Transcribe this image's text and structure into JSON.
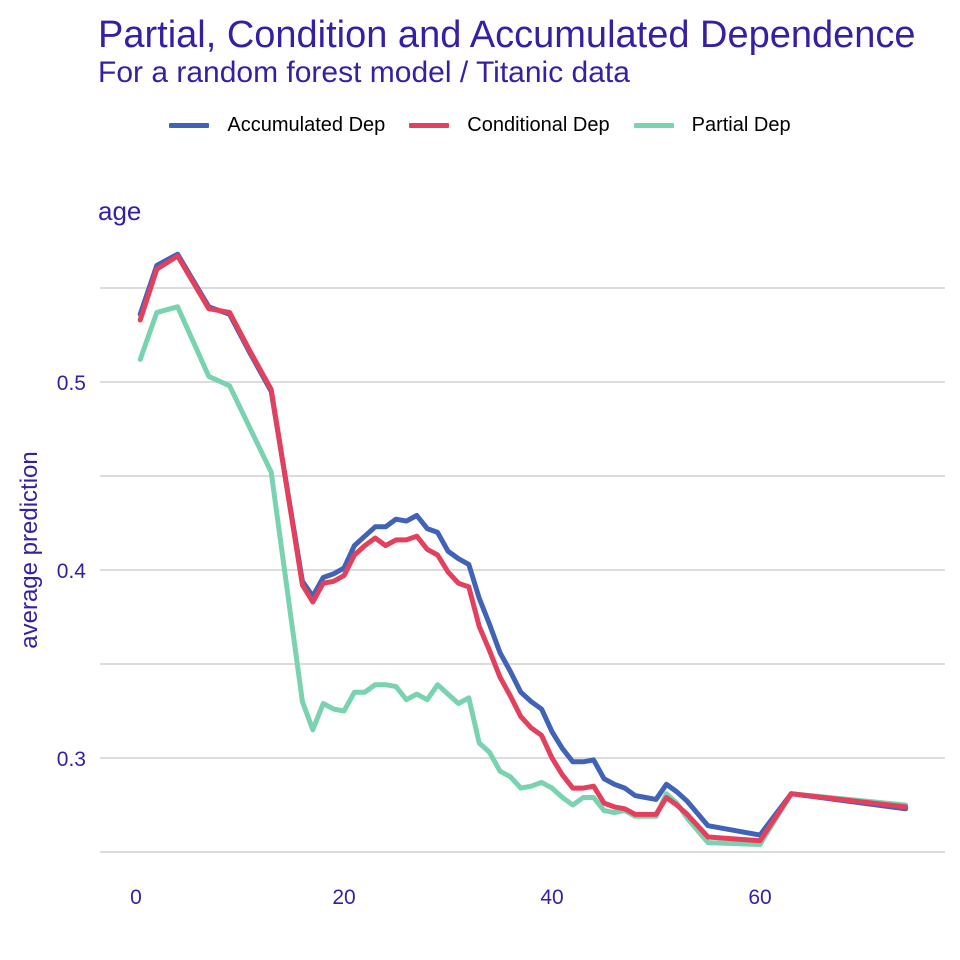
{
  "chart_data": {
    "type": "line",
    "title": "Partial, Condition and Accumulated Dependence",
    "subtitle": "For a random forest model / Titanic data",
    "panel": "age",
    "ylabel": "average prediction",
    "xlim": [
      0,
      74
    ],
    "ylim": [
      0.25,
      0.56
    ],
    "xticks": [
      0,
      20,
      40,
      60
    ],
    "yticks": [
      0.3,
      0.4,
      0.5
    ],
    "ygrid": [
      0.25,
      0.3,
      0.35,
      0.4,
      0.45,
      0.5,
      0.55
    ],
    "x": [
      0.4,
      2,
      4,
      7,
      9,
      11,
      13,
      16,
      17,
      18,
      19,
      20,
      21,
      22,
      23,
      24,
      25,
      26,
      27,
      28,
      29,
      30,
      31,
      32,
      33,
      34,
      35,
      36,
      37,
      38,
      39,
      40,
      41,
      42,
      43,
      44,
      45,
      46,
      47,
      48,
      49,
      50,
      51,
      52,
      53,
      55,
      60,
      63,
      74
    ],
    "series": [
      {
        "name": "Accumulated Dep",
        "color": "#4063b8",
        "values": [
          0.536,
          0.562,
          0.568,
          0.54,
          0.536,
          0.515,
          0.495,
          0.394,
          0.386,
          0.396,
          0.398,
          0.401,
          0.413,
          0.418,
          0.423,
          0.423,
          0.427,
          0.426,
          0.429,
          0.422,
          0.42,
          0.41,
          0.406,
          0.403,
          0.385,
          0.371,
          0.356,
          0.346,
          0.335,
          0.33,
          0.326,
          0.314,
          0.305,
          0.298,
          0.298,
          0.299,
          0.289,
          0.286,
          0.284,
          0.28,
          0.279,
          0.278,
          0.286,
          0.282,
          0.277,
          0.264,
          0.259,
          0.281,
          0.273
        ]
      },
      {
        "name": "Conditional Dep",
        "color": "#e3405e",
        "values": [
          0.533,
          0.56,
          0.567,
          0.539,
          0.537,
          0.516,
          0.496,
          0.392,
          0.383,
          0.393,
          0.394,
          0.397,
          0.408,
          0.413,
          0.417,
          0.413,
          0.416,
          0.416,
          0.418,
          0.411,
          0.408,
          0.399,
          0.393,
          0.391,
          0.37,
          0.357,
          0.343,
          0.333,
          0.322,
          0.316,
          0.312,
          0.3,
          0.291,
          0.284,
          0.284,
          0.285,
          0.276,
          0.274,
          0.273,
          0.27,
          0.27,
          0.27,
          0.279,
          0.275,
          0.27,
          0.258,
          0.256,
          0.281,
          0.274
        ]
      },
      {
        "name": "Partial Dep",
        "color": "#79d3b0",
        "values": [
          0.512,
          0.537,
          0.54,
          0.503,
          0.498,
          0.475,
          0.452,
          0.33,
          0.315,
          0.329,
          0.326,
          0.325,
          0.335,
          0.335,
          0.339,
          0.339,
          0.338,
          0.331,
          0.334,
          0.331,
          0.339,
          0.334,
          0.329,
          0.332,
          0.308,
          0.303,
          0.293,
          0.29,
          0.284,
          0.285,
          0.287,
          0.284,
          0.279,
          0.275,
          0.279,
          0.279,
          0.272,
          0.271,
          0.272,
          0.269,
          0.269,
          0.269,
          0.281,
          0.276,
          0.268,
          0.255,
          0.254,
          0.281,
          0.275
        ]
      }
    ]
  }
}
